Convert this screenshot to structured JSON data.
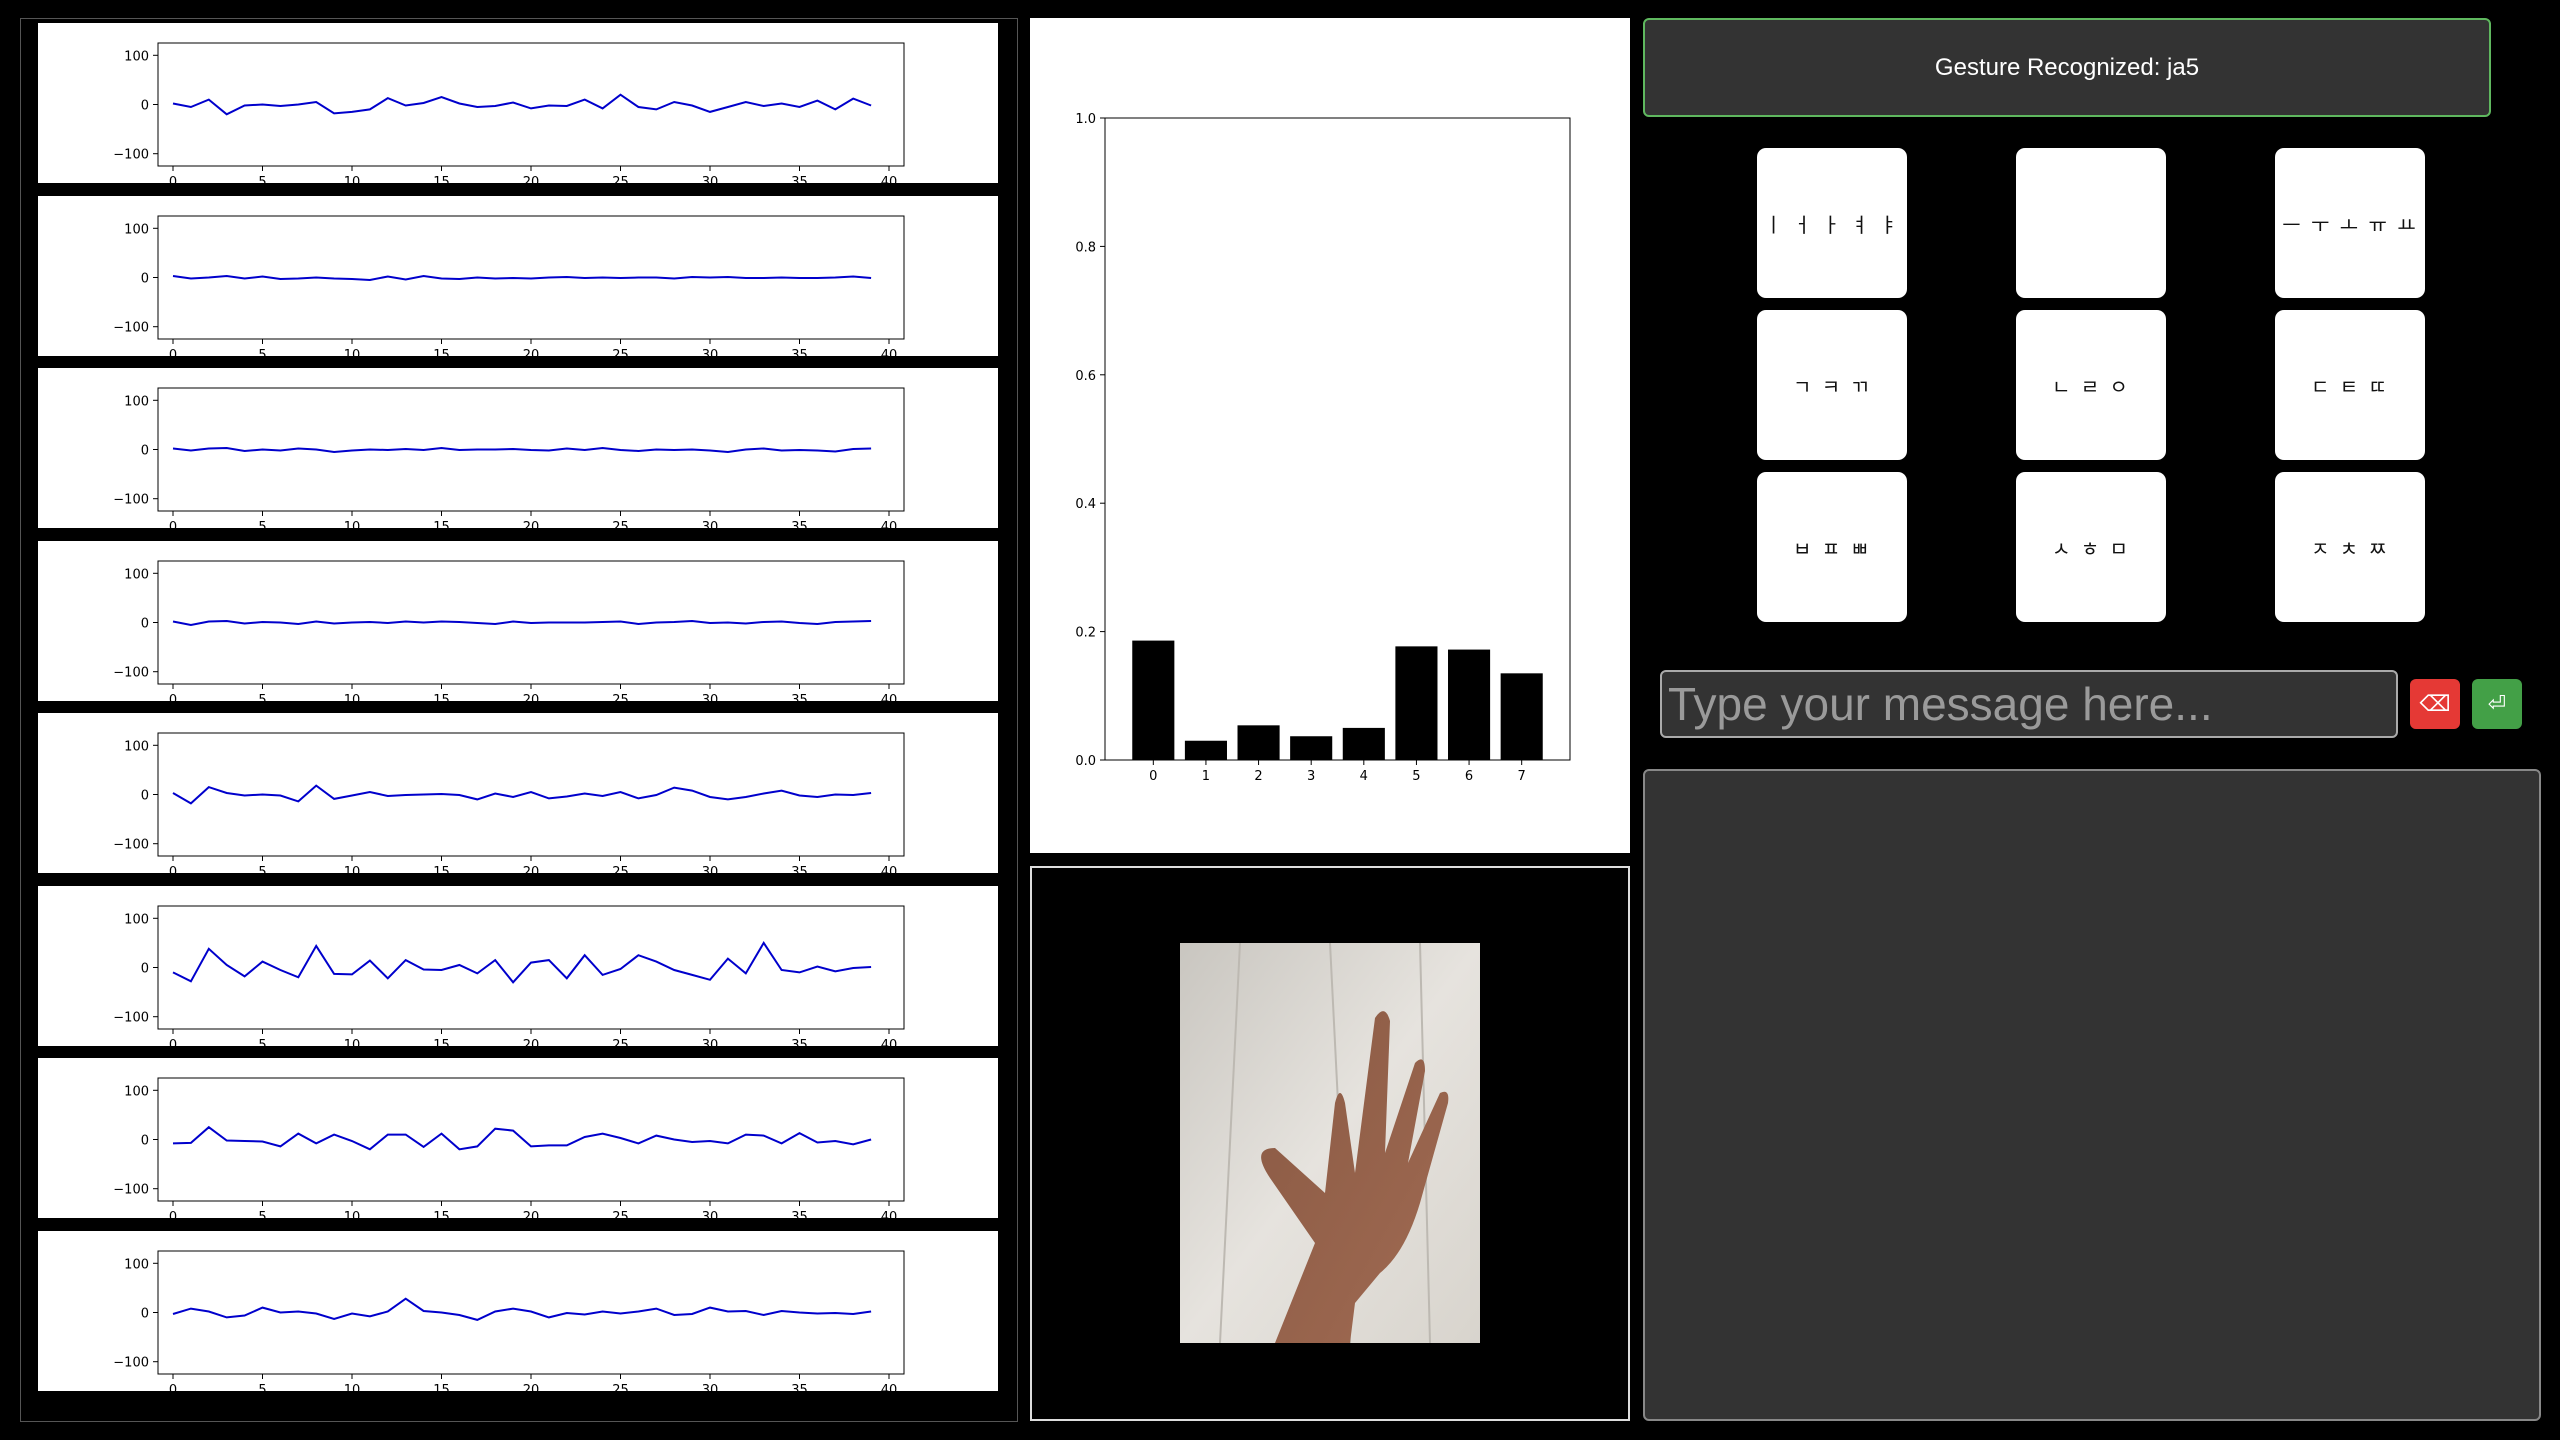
{
  "signal_plots": {
    "yticks": [
      "100",
      "0",
      "−100"
    ],
    "xticks": [
      "0",
      "5",
      "10",
      "15",
      "20",
      "25",
      "30",
      "35",
      "40"
    ],
    "line_color": "#0000cc",
    "series": [
      [
        2,
        -5,
        10,
        -20,
        -2,
        0,
        -3,
        0,
        5,
        -18,
        -15,
        -10,
        13,
        -2,
        3,
        15,
        2,
        -5,
        -3,
        4,
        -8,
        -2,
        -3,
        10,
        -8,
        20,
        -5,
        -10,
        5,
        -2,
        -15,
        -5,
        5,
        -3,
        2,
        -5,
        8,
        -10,
        12,
        -2
      ],
      [
        3,
        -2,
        0,
        3,
        -2,
        2,
        -3,
        -2,
        0,
        -2,
        -3,
        -5,
        2,
        -4,
        3,
        -2,
        -3,
        0,
        -2,
        -1,
        -2,
        0,
        1,
        -1,
        0,
        -1,
        0,
        0,
        -2,
        1,
        0,
        1,
        -1,
        -1,
        0,
        -1,
        -1,
        0,
        2,
        -1
      ],
      [
        2,
        -2,
        2,
        3,
        -3,
        0,
        -2,
        2,
        0,
        -5,
        -2,
        0,
        -1,
        1,
        -1,
        3,
        -1,
        0,
        0,
        1,
        -1,
        -2,
        2,
        -1,
        3,
        -1,
        -3,
        0,
        -1,
        0,
        -2,
        -5,
        0,
        2,
        -2,
        -1,
        -2,
        -4,
        1,
        2
      ],
      [
        2,
        -5,
        2,
        3,
        -2,
        1,
        0,
        -3,
        2,
        -2,
        0,
        1,
        -1,
        2,
        0,
        2,
        1,
        -1,
        -3,
        2,
        -1,
        0,
        0,
        0,
        1,
        2,
        -3,
        0,
        1,
        3,
        -1,
        0,
        -2,
        1,
        2,
        -1,
        -3,
        1,
        2,
        3
      ],
      [
        3,
        -18,
        15,
        3,
        -2,
        0,
        -2,
        -14,
        18,
        -9,
        -2,
        5,
        -3,
        -1,
        0,
        1,
        -1,
        -10,
        2,
        -5,
        5,
        -8,
        -4,
        2,
        -3,
        5,
        -8,
        -1,
        14,
        8,
        -5,
        -10,
        -5,
        2,
        8,
        -2,
        -5,
        0,
        -1,
        3
      ],
      [
        -10,
        -28,
        38,
        5,
        -18,
        12,
        -5,
        -20,
        44,
        -13,
        -14,
        14,
        -22,
        15,
        -4,
        -5,
        5,
        -12,
        15,
        -30,
        10,
        15,
        -22,
        25,
        -15,
        -3,
        25,
        12,
        -5,
        -15,
        -25,
        18,
        -12,
        50,
        -5,
        -10,
        2,
        -8,
        -1,
        1
      ],
      [
        -8,
        -7,
        25,
        -2,
        -3,
        -4,
        -14,
        12,
        -8,
        10,
        -3,
        -20,
        10,
        10,
        -15,
        12,
        -20,
        -14,
        22,
        18,
        -14,
        -12,
        -12,
        5,
        12,
        3,
        -8,
        8,
        0,
        -5,
        -3,
        -8,
        10,
        8,
        -8,
        13,
        -6,
        -3,
        -10,
        0
      ],
      [
        -3,
        8,
        2,
        -10,
        -6,
        10,
        0,
        2,
        -2,
        -13,
        -2,
        -8,
        2,
        28,
        3,
        0,
        -5,
        -15,
        2,
        8,
        2,
        -10,
        -1,
        -4,
        2,
        -2,
        2,
        8,
        -5,
        -3,
        10,
        2,
        3,
        -5,
        3,
        0,
        -2,
        -1,
        -3,
        2
      ]
    ]
  },
  "chart_data": {
    "type": "bar",
    "categories": [
      "0",
      "1",
      "2",
      "3",
      "4",
      "5",
      "6",
      "7"
    ],
    "values": [
      0.186,
      0.03,
      0.054,
      0.037,
      0.05,
      0.177,
      0.172,
      0.135
    ],
    "title": "",
    "xlabel": "",
    "ylabel": "",
    "ylim": [
      0,
      1.0
    ],
    "yticks": [
      "0.0",
      "0.2",
      "0.4",
      "0.6",
      "0.8",
      "1.0"
    ],
    "bar_color": "#000000"
  },
  "gesture": {
    "text": "Gesture Recognized: ja5"
  },
  "keyboard": {
    "keys": [
      "ㅣ ㅓ ㅏ ㅕ ㅑ",
      "",
      "ㅡ ㅜ ㅗ ㅠ ㅛ",
      "ㄱ ㅋ ㄲ",
      "ㄴ ㄹ ㅇ",
      "ㄷ ㅌ ㄸ",
      "ㅂ ㅍ ㅃ",
      "ㅅ ㅎ ㅁ",
      "ㅈ ㅊ ㅉ"
    ]
  },
  "message": {
    "placeholder": "Type your message here...",
    "value": ""
  },
  "buttons": {
    "backspace": {
      "label": "⌫",
      "color": "#e53935"
    },
    "enter": {
      "label": "⏎",
      "color": "#43a047"
    }
  },
  "camera": {
    "alt": "hand"
  }
}
